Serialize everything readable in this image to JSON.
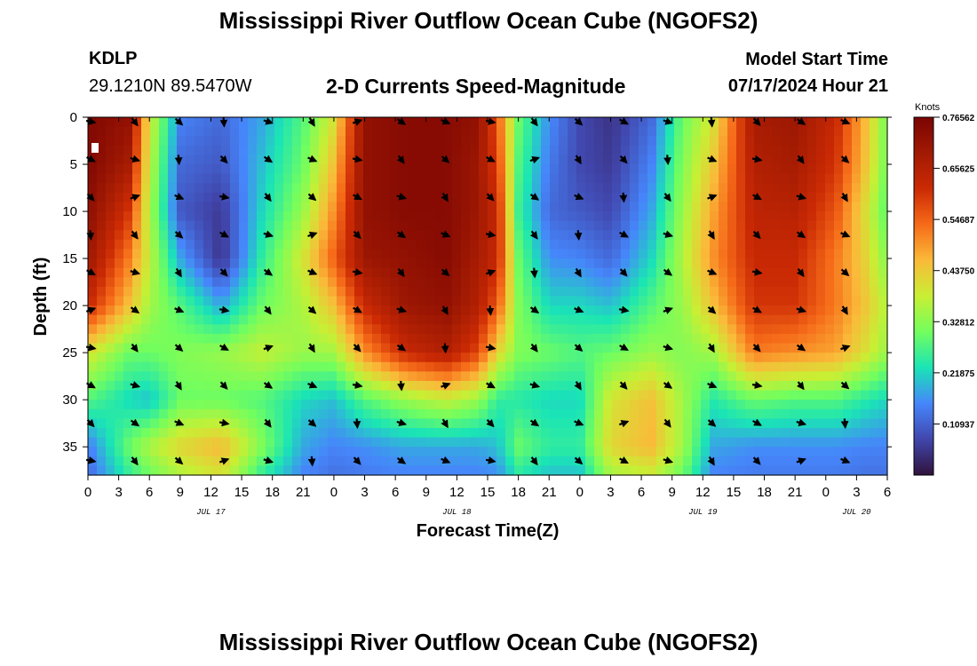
{
  "header": {
    "title": "Mississippi River Outflow Ocean Cube (NGOFS2)",
    "station": "KDLP",
    "coordinates": "29.1210N  89.5470W",
    "subtitle": "2-D Currents Speed-Magnitude",
    "model_start_label": "Model Start Time",
    "model_start_value": "07/17/2024 Hour 21"
  },
  "footer": {
    "title": "Mississippi River Outflow Ocean Cube (NGOFS2)"
  },
  "chart_data": {
    "type": "heatmap",
    "title": "2-D Currents Speed-Magnitude",
    "xlabel": "Forecast Time(Z)",
    "ylabel": "Depth (ft)",
    "x_range_hours": [
      0,
      78
    ],
    "y_range_ft": [
      0,
      38
    ],
    "x_tick_hours": [
      0,
      3,
      6,
      9,
      12,
      15,
      18,
      21,
      24,
      27,
      30,
      33,
      36,
      39,
      42,
      45,
      48,
      51,
      54,
      57,
      60,
      63,
      66,
      69,
      72,
      75,
      78
    ],
    "x_tick_labels": [
      "0",
      "3",
      "6",
      "9",
      "12",
      "15",
      "18",
      "21",
      "0",
      "3",
      "6",
      "9",
      "12",
      "15",
      "18",
      "21",
      "0",
      "3",
      "6",
      "9",
      "12",
      "15",
      "18",
      "21",
      "0",
      "3",
      "6"
    ],
    "day_labels": [
      {
        "hour": 12,
        "label": "JUL 17"
      },
      {
        "hour": 36,
        "label": "JUL 18"
      },
      {
        "hour": 60,
        "label": "JUL 19"
      },
      {
        "hour": 75,
        "label": "JUL 20"
      }
    ],
    "y_ticks": [
      0,
      5,
      10,
      15,
      20,
      25,
      30,
      35
    ],
    "colorbar": {
      "label": "Knots",
      "min": 0.0,
      "max": 0.7656,
      "tick_values": [
        0.10937,
        0.21875,
        0.32812,
        0.4375,
        0.54687,
        0.65625,
        0.76562
      ],
      "tick_labels": [
        "0.10937",
        "0.21875",
        "0.32812",
        "0.43750",
        "0.54687",
        "0.65625",
        "0.76562"
      ]
    },
    "speed_profiles_knots": {
      "depths_ft": [
        0,
        5,
        10,
        15,
        20,
        25,
        30,
        35,
        38
      ],
      "series": [
        {
          "hour": 0,
          "values": [
            0.75,
            0.75,
            0.73,
            0.7,
            0.62,
            0.4,
            0.28,
            0.14,
            0.12
          ]
        },
        {
          "hour": 4,
          "values": [
            0.72,
            0.68,
            0.6,
            0.52,
            0.45,
            0.3,
            0.22,
            0.3,
            0.25
          ]
        },
        {
          "hour": 6,
          "values": [
            0.4,
            0.38,
            0.36,
            0.38,
            0.35,
            0.3,
            0.2,
            0.36,
            0.3
          ]
        },
        {
          "hour": 9,
          "values": [
            0.15,
            0.12,
            0.1,
            0.18,
            0.28,
            0.32,
            0.3,
            0.42,
            0.36
          ]
        },
        {
          "hour": 13,
          "values": [
            0.12,
            0.1,
            0.06,
            0.05,
            0.18,
            0.34,
            0.3,
            0.46,
            0.4
          ]
        },
        {
          "hour": 17,
          "values": [
            0.18,
            0.2,
            0.22,
            0.25,
            0.3,
            0.38,
            0.28,
            0.32,
            0.25
          ]
        },
        {
          "hour": 21,
          "values": [
            0.28,
            0.3,
            0.34,
            0.4,
            0.36,
            0.34,
            0.22,
            0.18,
            0.15
          ]
        },
        {
          "hour": 24,
          "values": [
            0.4,
            0.45,
            0.5,
            0.55,
            0.45,
            0.35,
            0.2,
            0.15,
            0.13
          ]
        },
        {
          "hour": 27,
          "values": [
            0.72,
            0.72,
            0.72,
            0.7,
            0.62,
            0.5,
            0.28,
            0.16,
            0.14
          ]
        },
        {
          "hour": 31,
          "values": [
            0.74,
            0.74,
            0.74,
            0.72,
            0.7,
            0.62,
            0.34,
            0.18,
            0.15
          ]
        },
        {
          "hour": 35,
          "values": [
            0.74,
            0.74,
            0.74,
            0.74,
            0.72,
            0.66,
            0.38,
            0.18,
            0.15
          ]
        },
        {
          "hour": 38,
          "values": [
            0.72,
            0.7,
            0.7,
            0.68,
            0.66,
            0.58,
            0.34,
            0.18,
            0.15
          ]
        },
        {
          "hour": 40,
          "values": [
            0.55,
            0.58,
            0.62,
            0.62,
            0.55,
            0.42,
            0.25,
            0.2,
            0.16
          ]
        },
        {
          "hour": 42,
          "values": [
            0.3,
            0.28,
            0.26,
            0.3,
            0.32,
            0.32,
            0.24,
            0.3,
            0.24
          ]
        },
        {
          "hour": 45,
          "values": [
            0.16,
            0.14,
            0.12,
            0.16,
            0.22,
            0.3,
            0.22,
            0.25,
            0.2
          ]
        },
        {
          "hour": 48,
          "values": [
            0.08,
            0.08,
            0.1,
            0.15,
            0.22,
            0.28,
            0.22,
            0.25,
            0.2
          ]
        },
        {
          "hour": 51,
          "values": [
            0.05,
            0.06,
            0.08,
            0.12,
            0.2,
            0.3,
            0.4,
            0.42,
            0.35
          ]
        },
        {
          "hour": 55,
          "values": [
            0.12,
            0.15,
            0.18,
            0.22,
            0.28,
            0.34,
            0.45,
            0.46,
            0.38
          ]
        },
        {
          "hour": 58,
          "values": [
            0.3,
            0.32,
            0.34,
            0.36,
            0.34,
            0.32,
            0.35,
            0.35,
            0.3
          ]
        },
        {
          "hour": 61,
          "values": [
            0.4,
            0.44,
            0.48,
            0.5,
            0.45,
            0.35,
            0.24,
            0.18,
            0.15
          ]
        },
        {
          "hour": 65,
          "values": [
            0.68,
            0.66,
            0.64,
            0.62,
            0.6,
            0.52,
            0.3,
            0.16,
            0.14
          ]
        },
        {
          "hour": 69,
          "values": [
            0.7,
            0.68,
            0.65,
            0.62,
            0.6,
            0.5,
            0.28,
            0.16,
            0.14
          ]
        },
        {
          "hour": 73,
          "values": [
            0.62,
            0.6,
            0.56,
            0.52,
            0.52,
            0.48,
            0.28,
            0.16,
            0.14
          ]
        },
        {
          "hour": 76,
          "values": [
            0.45,
            0.44,
            0.4,
            0.42,
            0.44,
            0.4,
            0.24,
            0.15,
            0.13
          ]
        },
        {
          "hour": 78,
          "values": [
            0.3,
            0.3,
            0.28,
            0.32,
            0.36,
            0.34,
            0.22,
            0.15,
            0.13
          ]
        }
      ]
    },
    "direction_vectors": {
      "hours": [
        0,
        4.3,
        8.6,
        13,
        17.3,
        21.6,
        26,
        30.3,
        34.6,
        39,
        43.3,
        47.6,
        52,
        56.3,
        60.6,
        65,
        69.3,
        73.6
      ],
      "depths_ft": [
        0,
        4,
        8,
        12,
        16,
        20,
        24,
        28,
        32,
        36
      ],
      "note": "Black arrows indicate current direction at each grid point; predominantly toward the southeast (down-right)."
    }
  }
}
